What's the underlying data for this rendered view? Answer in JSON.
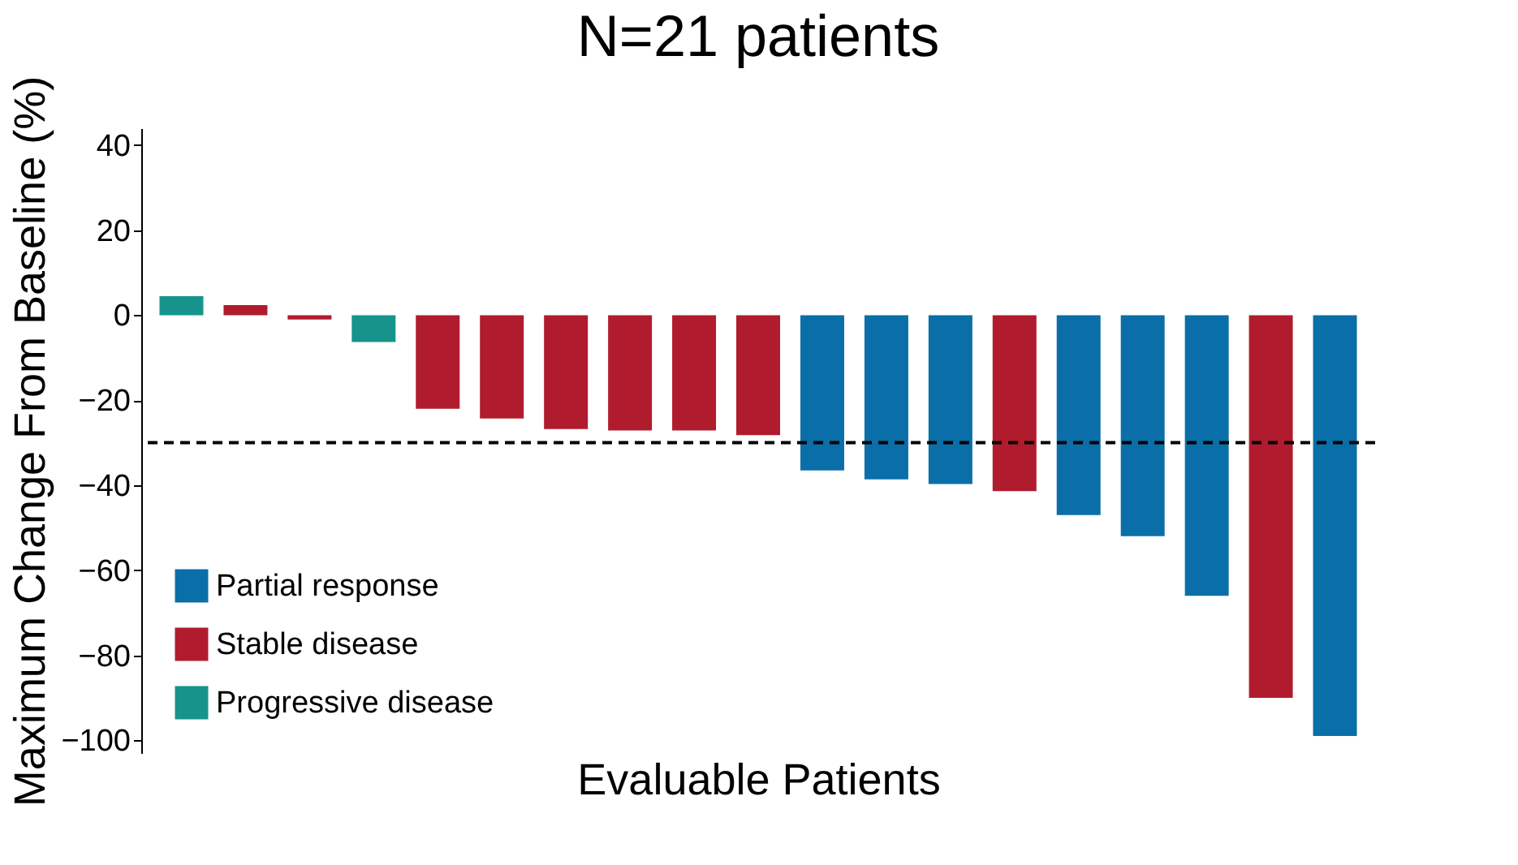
{
  "chart_data": {
    "type": "bar",
    "title": "N=21 patients",
    "xlabel": "Evaluable Patients",
    "ylabel": "Maximum Change From Baseline (%)",
    "categories": [
      null,
      null,
      null,
      null,
      null,
      null,
      null,
      null,
      null,
      null,
      null,
      null,
      null,
      null,
      null,
      null,
      null,
      null,
      null
    ],
    "series": [
      {
        "name": "Partial response",
        "color": "#0a6fa8",
        "values": [
          null,
          null,
          null,
          null,
          null,
          null,
          null,
          null,
          null,
          null,
          -36.5,
          -38.6,
          -39.7,
          null,
          -47,
          -52,
          -66,
          null,
          -99
        ]
      },
      {
        "name": "Stable disease",
        "color": "#b01c2e",
        "values": [
          null,
          2.4,
          -1,
          null,
          -22,
          -24.3,
          -26.8,
          -27.1,
          -27.1,
          -28.2,
          null,
          null,
          null,
          -41.4,
          null,
          null,
          null,
          -90,
          null
        ]
      },
      {
        "name": "Progressive disease",
        "color": "#16948c",
        "values": [
          4.5,
          null,
          null,
          -6.3,
          null,
          null,
          null,
          null,
          null,
          null,
          null,
          null,
          null,
          null,
          null,
          null,
          null,
          null,
          null
        ]
      }
    ],
    "ylim": [
      -103,
      44
    ],
    "yticks": [
      {
        "value": -100,
        "label": "−100"
      },
      {
        "value": -80,
        "label": "−80"
      },
      {
        "value": -60,
        "label": "−60"
      },
      {
        "value": -40,
        "label": "−40"
      },
      {
        "value": -20,
        "label": "−20"
      },
      0,
      20,
      40
    ],
    "ref_lines": [
      {
        "axis": "y",
        "value": -30,
        "label": null,
        "color": "#000000",
        "line_style": "dashed"
      }
    ],
    "legend": "bottom left",
    "grid": false
  }
}
